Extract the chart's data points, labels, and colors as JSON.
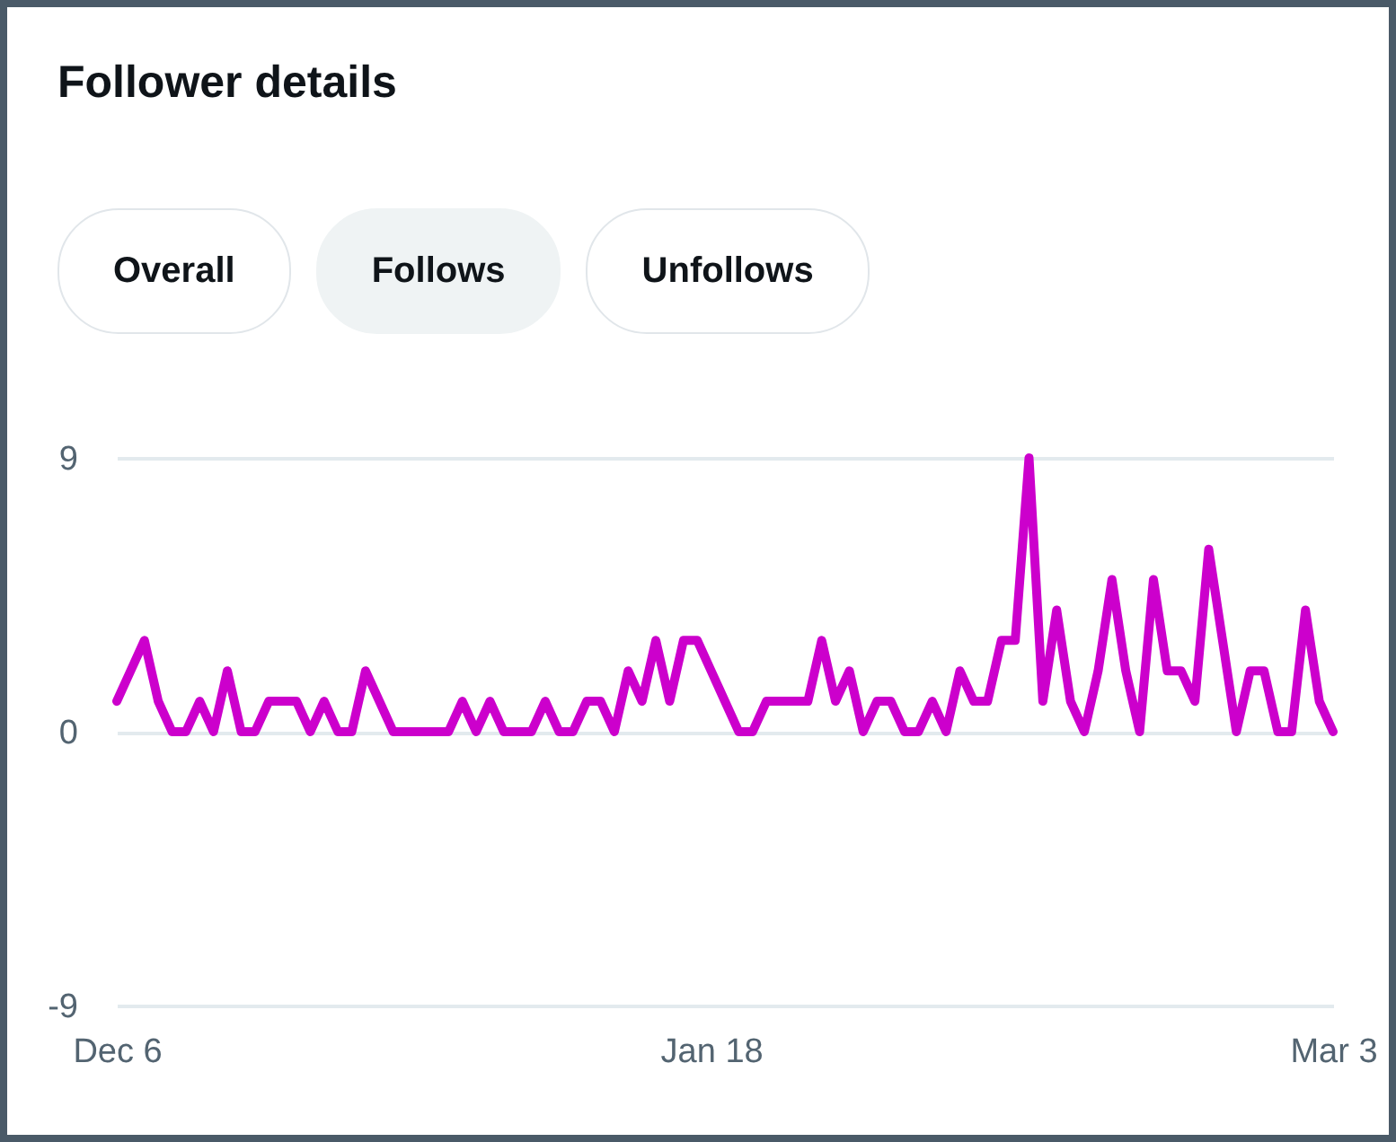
{
  "chart_data": {
    "type": "line",
    "title": "Follower details",
    "annotations": [
      "Overall",
      "Follows",
      "Unfollows"
    ],
    "categories": [
      "Dec 6",
      null,
      null,
      null,
      null,
      null,
      null,
      null,
      null,
      null,
      null,
      null,
      null,
      null,
      null,
      null,
      null,
      null,
      null,
      null,
      null,
      null,
      null,
      null,
      null,
      null,
      null,
      null,
      null,
      null,
      null,
      null,
      null,
      null,
      null,
      null,
      null,
      null,
      null,
      null,
      null,
      null,
      null,
      "Jan 18",
      null,
      null,
      null,
      null,
      null,
      null,
      null,
      null,
      null,
      null,
      null,
      null,
      null,
      null,
      null,
      null,
      null,
      null,
      null,
      null,
      null,
      null,
      null,
      null,
      null,
      null,
      null,
      null,
      null,
      null,
      null,
      null,
      null,
      null,
      null,
      null,
      null,
      null,
      null,
      null,
      null,
      null,
      null,
      null,
      "Mar 3"
    ],
    "series": [
      {
        "color": "#cc00cc",
        "values": [
          1,
          2,
          3,
          1,
          0,
          0,
          1,
          0,
          2,
          0,
          0,
          1,
          1,
          1,
          0,
          1,
          0,
          0,
          2,
          1,
          0,
          0,
          0,
          0,
          0,
          1,
          0,
          1,
          0,
          0,
          0,
          1,
          0,
          0,
          1,
          1,
          0,
          2,
          1,
          3,
          1,
          3,
          3,
          2,
          1,
          0,
          0,
          1,
          1,
          1,
          1,
          3,
          1,
          2,
          0,
          1,
          1,
          0,
          0,
          1,
          0,
          2,
          1,
          1,
          3,
          3,
          9,
          1,
          4,
          1,
          0,
          2,
          5,
          2,
          0,
          5,
          2,
          2,
          1,
          6,
          3,
          0,
          2,
          2,
          0,
          0,
          4,
          1,
          0
        ]
      }
    ],
    "ylim": [
      -9,
      9
    ],
    "yticks": [
      -9,
      0,
      9
    ],
    "grid": "y",
    "line_style": "solid"
  }
}
